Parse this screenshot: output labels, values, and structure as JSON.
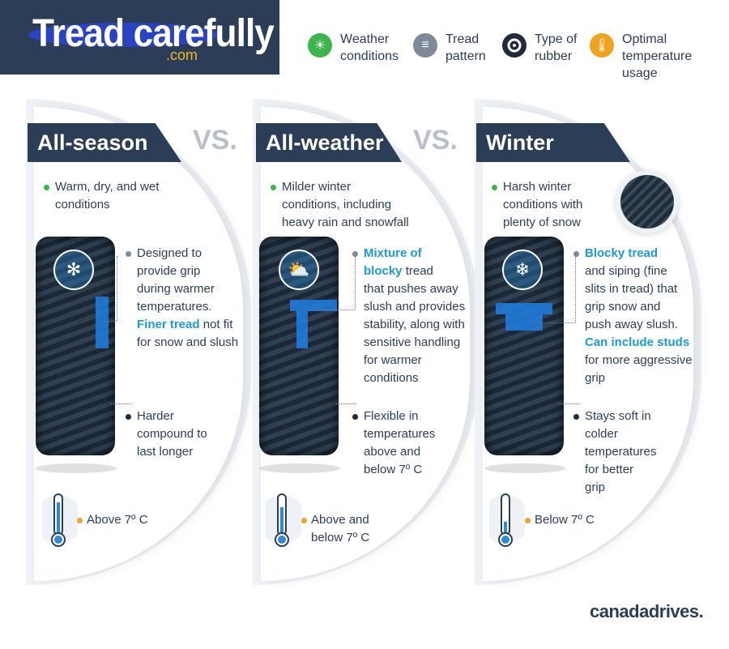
{
  "header": {
    "title": "Tread carefully",
    "watermark": ".com"
  },
  "legend": [
    {
      "label_line1": "Weather",
      "label_line2": "conditions",
      "label_line3": "",
      "icon": "weather-icon",
      "color": "#3cb54a"
    },
    {
      "label_line1": "Tread",
      "label_line2": "pattern",
      "label_line3": "",
      "icon": "tread-pattern-icon",
      "color": "#7e8a99"
    },
    {
      "label_line1": "Type of",
      "label_line2": "rubber",
      "label_line3": "",
      "icon": "rubber-icon",
      "color": "#1f2a3a"
    },
    {
      "label_line1": "Optimal",
      "label_line2": "temperature",
      "label_line3": "usage",
      "icon": "thermometer-icon",
      "color": "#f0a31c"
    }
  ],
  "vs_label": "VS.",
  "panels": [
    {
      "name": "All-season",
      "weather": [
        "Warm, dry, and wet",
        "conditions"
      ],
      "tread": {
        "lines": [
          "Designed to",
          "provide grip",
          "during warmer",
          "temperatures."
        ],
        "highlight": "Finer tread",
        "after": [
          "not fit",
          "for snow and slush"
        ]
      },
      "rubber": [
        "Harder",
        "compound to",
        "last longer"
      ],
      "temp": [
        "Above 7º C"
      ]
    },
    {
      "name": "All-weather",
      "weather": [
        "Milder winter",
        "conditions, including",
        "heavy rain and snowfall"
      ],
      "tread": {
        "highlight1": "Mixture of",
        "highlight2": "blocky",
        "rest_line1": "tread",
        "lines": [
          "that pushes away",
          "slush and provides",
          "stability, along with",
          "sensitive handling",
          "for warmer",
          "conditions"
        ]
      },
      "rubber": [
        "Flexible in",
        "temperatures",
        "above and",
        "below 7º C"
      ],
      "temp": [
        "Above and",
        "below 7º C"
      ]
    },
    {
      "name": "Winter",
      "weather": [
        "Harsh winter",
        "conditions with",
        "plenty of snow"
      ],
      "tread": {
        "highlight1": "Blocky tread",
        "lines": [
          "and siping (fine",
          "slits in tread) that",
          "grip snow and",
          "push away slush."
        ],
        "highlight2": "Can include studs",
        "after": [
          "for more aggressive",
          "grip"
        ]
      },
      "rubber": [
        "Stays soft in",
        "colder",
        "temperatures",
        "for better",
        "grip"
      ],
      "temp": [
        "Below 7º C"
      ]
    }
  ],
  "brand": "canadadrives."
}
